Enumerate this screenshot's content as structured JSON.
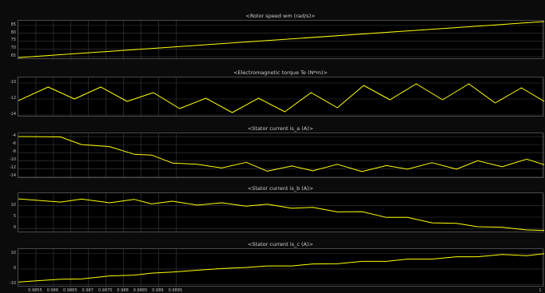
{
  "chart_data": [
    {
      "type": "line",
      "title": "<Rotor speed wm (rad/s)>",
      "y_ticks": [
        "85",
        "80",
        "75",
        "70",
        "65"
      ],
      "ylim": [
        63,
        88
      ],
      "series": [
        {
          "color": "#ffff00",
          "x": [
            0.985,
            1.0
          ],
          "y": [
            64.5,
            87.5
          ]
        }
      ]
    },
    {
      "type": "line",
      "title": "<Electromagnetic torque Te (N*m)>",
      "y_ticks": [
        "-10",
        "-12",
        "-14"
      ],
      "ylim": [
        -14.3,
        -9.3
      ],
      "series": [
        {
          "color": "#ffff00",
          "x": [
            0.985,
            0.98585,
            0.9866,
            0.98735,
            0.9881,
            0.98885,
            0.9896,
            0.99035,
            0.9911,
            0.99185,
            0.9926,
            0.99335,
            0.9941,
            0.99485,
            0.9956,
            0.99635,
            0.9971,
            0.99785,
            0.9986,
            0.99935,
            1.0
          ],
          "y": [
            -12.2,
            -10.5,
            -12.0,
            -10.5,
            -12.3,
            -11.2,
            -13.2,
            -11.9,
            -13.7,
            -11.9,
            -13.6,
            -11.2,
            -13.1,
            -10.3,
            -12.1,
            -10.1,
            -12.1,
            -10.1,
            -12.5,
            -10.6,
            -12.3
          ]
        }
      ]
    },
    {
      "type": "line",
      "title": "<Stator current is_a (A)>",
      "y_ticks": [
        "-4",
        "-6",
        "-8",
        "-10",
        "-12",
        "-14"
      ],
      "ylim": [
        -14.5,
        -3.2
      ],
      "series": [
        {
          "color": "#ffff00",
          "x": [
            0.985,
            0.9862,
            0.9868,
            0.9876,
            0.9883,
            0.9888,
            0.9894,
            0.9901,
            0.9908,
            0.9915,
            0.9921,
            0.9928,
            0.9934,
            0.9941,
            0.9948,
            0.9955,
            0.9961,
            0.9968,
            0.9975,
            0.9981,
            0.9988,
            0.9995,
            1.0
          ],
          "y": [
            -4.0,
            -4.1,
            -6.0,
            -6.5,
            -8.4,
            -8.6,
            -10.6,
            -10.9,
            -11.8,
            -10.4,
            -12.6,
            -11.3,
            -12.5,
            -10.9,
            -12.7,
            -11.2,
            -12.1,
            -10.5,
            -12.1,
            -10.0,
            -11.5,
            -9.6,
            -11.0
          ]
        }
      ]
    },
    {
      "type": "line",
      "title": "<Stator current is_b (A)>",
      "y_ticks": [
        "10",
        "5",
        "0"
      ],
      "ylim": [
        -2,
        15.5
      ],
      "series": [
        {
          "color": "#ffff00",
          "x": [
            0.985,
            0.9862,
            0.9868,
            0.9876,
            0.9883,
            0.9888,
            0.9894,
            0.9901,
            0.9908,
            0.9915,
            0.9921,
            0.9928,
            0.9934,
            0.9941,
            0.9948,
            0.9955,
            0.9961,
            0.9968,
            0.9975,
            0.9981,
            0.9988,
            0.9995,
            1.0
          ],
          "y": [
            13.0,
            11.6,
            12.9,
            11.3,
            12.8,
            10.8,
            12.0,
            10.3,
            11.3,
            9.8,
            10.7,
            8.9,
            9.3,
            7.3,
            7.4,
            4.9,
            4.9,
            2.5,
            2.3,
            0.8,
            0.6,
            -0.6,
            -0.8
          ]
        }
      ]
    },
    {
      "type": "line",
      "title": "<Stator current is_c (A)>",
      "y_ticks": [
        "10",
        "0",
        "-10"
      ],
      "ylim": [
        -12,
        13
      ],
      "series": [
        {
          "color": "#ffff00",
          "x": [
            0.985,
            0.9862,
            0.9868,
            0.9876,
            0.9883,
            0.9888,
            0.9894,
            0.9901,
            0.9908,
            0.9915,
            0.9921,
            0.9928,
            0.9934,
            0.9941,
            0.9948,
            0.9955,
            0.9961,
            0.9968,
            0.9975,
            0.9981,
            0.9988,
            0.9995,
            1.0
          ],
          "y": [
            -8.5,
            -6.7,
            -6.5,
            -4.5,
            -4.0,
            -2.7,
            -2.0,
            -0.8,
            0.3,
            1.0,
            2.0,
            2.0,
            3.3,
            3.4,
            5.0,
            5.0,
            6.5,
            6.5,
            8.0,
            8.0,
            9.5,
            8.7,
            10.0
          ]
        }
      ]
    }
  ],
  "x_axis": {
    "xlim": [
      0.985,
      1.0
    ],
    "ticks": [
      {
        "v": 0.9855,
        "label": "0.9855"
      },
      {
        "v": 0.986,
        "label": "0.986"
      },
      {
        "v": 0.9865,
        "label": "0.9865"
      },
      {
        "v": 0.987,
        "label": "0.987"
      },
      {
        "v": 0.9875,
        "label": "0.9875"
      },
      {
        "v": 0.988,
        "label": "0.988"
      },
      {
        "v": 0.9885,
        "label": "0.9885"
      },
      {
        "v": 0.989,
        "label": "0.989"
      },
      {
        "v": 0.9895,
        "label": "0.9895"
      },
      {
        "v": 1.0,
        "label": "1"
      }
    ]
  },
  "colors": {
    "background": "#0b0b0b",
    "plot_background": "#000000",
    "grid": "#3c3c3c",
    "signal": "#ffff00",
    "text": "#cfcfcf"
  }
}
